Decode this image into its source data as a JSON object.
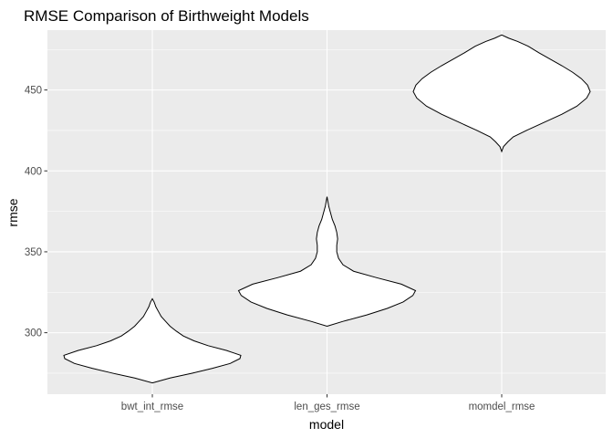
{
  "chart_data": {
    "type": "violin",
    "title": "RMSE Comparison of Birthweight Models",
    "xlabel": "model",
    "ylabel": "rmse",
    "categories": [
      "bwt_int_rmse",
      "len_ges_rmse",
      "momdel_rmse"
    ],
    "ylim": [
      262,
      487
    ],
    "yticks": [
      300,
      350,
      400,
      450
    ],
    "grid": true,
    "background": "#ebebeb",
    "violin_fill": "#ffffff",
    "violin_outline": "#000000",
    "series": [
      {
        "category": "bwt_int_rmse",
        "range": [
          269,
          321
        ],
        "profile": [
          [
            269,
            0.0
          ],
          [
            272,
            0.2
          ],
          [
            275,
            0.45
          ],
          [
            278,
            0.68
          ],
          [
            281,
            0.88
          ],
          [
            284,
            0.99
          ],
          [
            286,
            1.0
          ],
          [
            289,
            0.84
          ],
          [
            292,
            0.63
          ],
          [
            295,
            0.47
          ],
          [
            298,
            0.35
          ],
          [
            301,
            0.27
          ],
          [
            304,
            0.2
          ],
          [
            307,
            0.15
          ],
          [
            310,
            0.1
          ],
          [
            313,
            0.07
          ],
          [
            316,
            0.04
          ],
          [
            319,
            0.02
          ],
          [
            321,
            0.0
          ]
        ]
      },
      {
        "category": "len_ges_rmse",
        "range": [
          304,
          384
        ],
        "profile": [
          [
            304,
            0.0
          ],
          [
            307,
            0.18
          ],
          [
            311,
            0.45
          ],
          [
            315,
            0.68
          ],
          [
            319,
            0.86
          ],
          [
            323,
            0.97
          ],
          [
            326,
            1.0
          ],
          [
            330,
            0.84
          ],
          [
            334,
            0.56
          ],
          [
            338,
            0.3
          ],
          [
            342,
            0.18
          ],
          [
            346,
            0.13
          ],
          [
            350,
            0.11
          ],
          [
            354,
            0.11
          ],
          [
            358,
            0.12
          ],
          [
            362,
            0.11
          ],
          [
            366,
            0.09
          ],
          [
            370,
            0.06
          ],
          [
            374,
            0.04
          ],
          [
            378,
            0.02
          ],
          [
            381,
            0.01
          ],
          [
            384,
            0.0
          ]
        ]
      },
      {
        "category": "momdel_rmse",
        "range": [
          412,
          484
        ],
        "profile": [
          [
            412,
            0.0
          ],
          [
            415,
            0.02
          ],
          [
            418,
            0.07
          ],
          [
            421,
            0.13
          ],
          [
            425,
            0.28
          ],
          [
            430,
            0.48
          ],
          [
            435,
            0.68
          ],
          [
            440,
            0.85
          ],
          [
            445,
            0.96
          ],
          [
            449,
            1.0
          ],
          [
            453,
            0.97
          ],
          [
            457,
            0.9
          ],
          [
            461,
            0.8
          ],
          [
            465,
            0.68
          ],
          [
            469,
            0.55
          ],
          [
            473,
            0.42
          ],
          [
            477,
            0.3
          ],
          [
            480,
            0.18
          ],
          [
            482,
            0.08
          ],
          [
            484,
            0.0
          ]
        ]
      }
    ]
  }
}
